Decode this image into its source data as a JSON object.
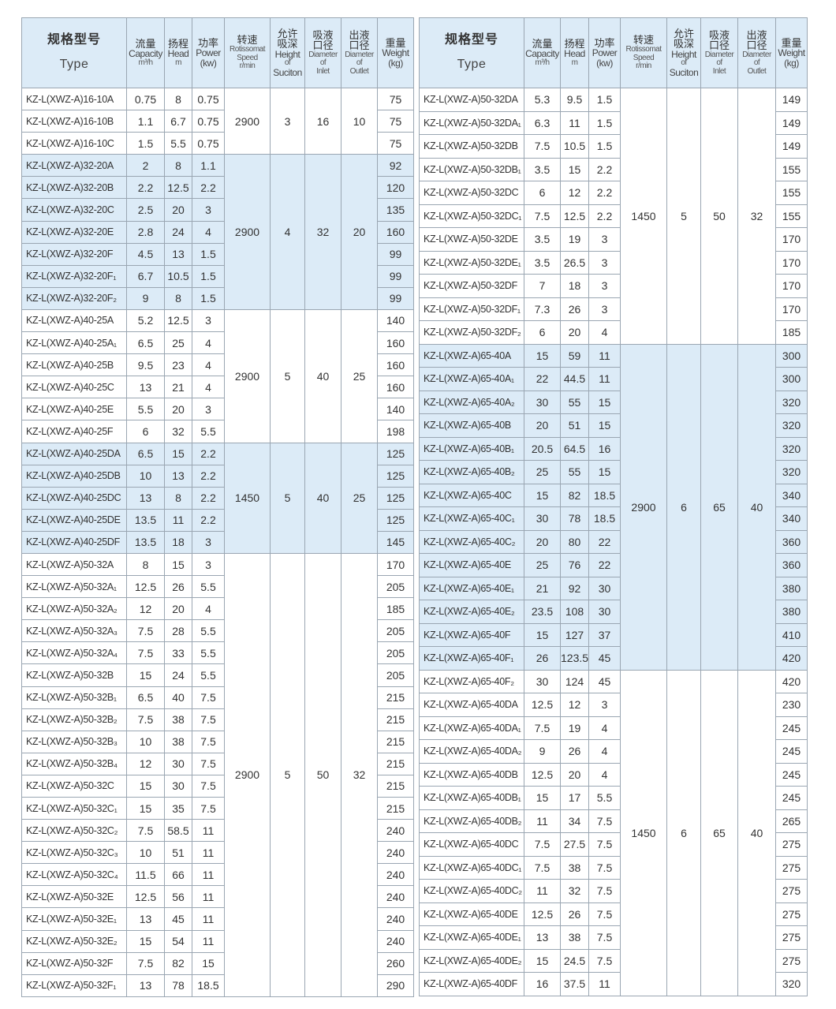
{
  "header": {
    "type_cn": "规格型号",
    "type_en": "Type",
    "capacity_cn": "流量",
    "capacity_en": "Capacity",
    "capacity_unit": "m³/h",
    "head_cn": "扬程",
    "head_en": "Head",
    "head_unit": "m",
    "power_cn": "功率",
    "power_en": "Power",
    "power_unit": "(kw)",
    "speed_cn": "转速",
    "speed_en1": "Rotissomat",
    "speed_en2": "Speed",
    "speed_unit": "r/min",
    "height_cn1": "允许",
    "height_cn2": "吸深",
    "height_en1": "Height",
    "height_en2": "of",
    "height_en3": "Suciton",
    "inlet_cn1": "吸液",
    "inlet_cn2": "口径",
    "inlet_en1": "Diameter",
    "inlet_en2": "of",
    "inlet_en3": "Inlet",
    "outlet_cn1": "出液",
    "outlet_cn2": "口径",
    "outlet_en1": "Diameter",
    "outlet_en2": "of",
    "outlet_en3": "Outlet",
    "weight_cn": "重量",
    "weight_en": "Weight",
    "weight_unit": "(kg)"
  },
  "colors": {
    "shade": "#dcebf7",
    "border": "#9aa6b2"
  },
  "tables": [
    {
      "groups": [
        {
          "speed": "2900",
          "height": "3",
          "inlet": "16",
          "outlet": "10",
          "shaded": false,
          "rows": [
            [
              "KZ-L(XWZ-A)16-10A",
              "0.75",
              "8",
              "0.75",
              "75"
            ],
            [
              "KZ-L(XWZ-A)16-10B",
              "1.1",
              "6.7",
              "0.75",
              "75"
            ],
            [
              "KZ-L(XWZ-A)16-10C",
              "1.5",
              "5.5",
              "0.75",
              "75"
            ]
          ]
        },
        {
          "speed": "2900",
          "height": "4",
          "inlet": "32",
          "outlet": "20",
          "shaded": true,
          "rows": [
            [
              "KZ-L(XWZ-A)32-20A",
              "2",
              "8",
              "1.1",
              "92"
            ],
            [
              "KZ-L(XWZ-A)32-20B",
              "2.2",
              "12.5",
              "2.2",
              "120"
            ],
            [
              "KZ-L(XWZ-A)32-20C",
              "2.5",
              "20",
              "3",
              "135"
            ],
            [
              "KZ-L(XWZ-A)32-20E",
              "2.8",
              "24",
              "4",
              "160"
            ],
            [
              "KZ-L(XWZ-A)32-20F",
              "4.5",
              "13",
              "1.5",
              "99"
            ],
            [
              "KZ-L(XWZ-A)32-20F₁",
              "6.7",
              "10.5",
              "1.5",
              "99"
            ],
            [
              "KZ-L(XWZ-A)32-20F₂",
              "9",
              "8",
              "1.5",
              "99"
            ]
          ]
        },
        {
          "speed": "2900",
          "height": "5",
          "inlet": "40",
          "outlet": "25",
          "shaded": false,
          "rows": [
            [
              "KZ-L(XWZ-A)40-25A",
              "5.2",
              "12.5",
              "3",
              "140"
            ],
            [
              "KZ-L(XWZ-A)40-25A₁",
              "6.5",
              "25",
              "4",
              "160"
            ],
            [
              "KZ-L(XWZ-A)40-25B",
              "9.5",
              "23",
              "4",
              "160"
            ],
            [
              "KZ-L(XWZ-A)40-25C",
              "13",
              "21",
              "4",
              "160"
            ],
            [
              "KZ-L(XWZ-A)40-25E",
              "5.5",
              "20",
              "3",
              "140"
            ],
            [
              "KZ-L(XWZ-A)40-25F",
              "6",
              "32",
              "5.5",
              "198"
            ]
          ]
        },
        {
          "speed": "1450",
          "height": "5",
          "inlet": "40",
          "outlet": "25",
          "shaded": true,
          "rows": [
            [
              "KZ-L(XWZ-A)40-25DA",
              "6.5",
              "15",
              "2.2",
              "125"
            ],
            [
              "KZ-L(XWZ-A)40-25DB",
              "10",
              "13",
              "2.2",
              "125"
            ],
            [
              "KZ-L(XWZ-A)40-25DC",
              "13",
              "8",
              "2.2",
              "125"
            ],
            [
              "KZ-L(XWZ-A)40-25DE",
              "13.5",
              "11",
              "2.2",
              "125"
            ],
            [
              "KZ-L(XWZ-A)40-25DF",
              "13.5",
              "18",
              "3",
              "145"
            ]
          ]
        },
        {
          "speed": "2900",
          "height": "5",
          "inlet": "50",
          "outlet": "32",
          "shaded": false,
          "rows": [
            [
              "KZ-L(XWZ-A)50-32A",
              "8",
              "15",
              "3",
              "170"
            ],
            [
              "KZ-L(XWZ-A)50-32A₁",
              "12.5",
              "26",
              "5.5",
              "205"
            ],
            [
              "KZ-L(XWZ-A)50-32A₂",
              "12",
              "20",
              "4",
              "185"
            ],
            [
              "KZ-L(XWZ-A)50-32A₃",
              "7.5",
              "28",
              "5.5",
              "205"
            ],
            [
              "KZ-L(XWZ-A)50-32A₄",
              "7.5",
              "33",
              "5.5",
              "205"
            ],
            [
              "KZ-L(XWZ-A)50-32B",
              "15",
              "24",
              "5.5",
              "205"
            ],
            [
              "KZ-L(XWZ-A)50-32B₁",
              "6.5",
              "40",
              "7.5",
              "215"
            ],
            [
              "KZ-L(XWZ-A)50-32B₂",
              "7.5",
              "38",
              "7.5",
              "215"
            ],
            [
              "KZ-L(XWZ-A)50-32B₃",
              "10",
              "38",
              "7.5",
              "215"
            ],
            [
              "KZ-L(XWZ-A)50-32B₄",
              "12",
              "30",
              "7.5",
              "215"
            ],
            [
              "KZ-L(XWZ-A)50-32C",
              "15",
              "30",
              "7.5",
              "215"
            ],
            [
              "KZ-L(XWZ-A)50-32C₁",
              "15",
              "35",
              "7.5",
              "215"
            ],
            [
              "KZ-L(XWZ-A)50-32C₂",
              "7.5",
              "58.5",
              "11",
              "240"
            ],
            [
              "KZ-L(XWZ-A)50-32C₃",
              "10",
              "51",
              "11",
              "240"
            ],
            [
              "KZ-L(XWZ-A)50-32C₄",
              "11.5",
              "66",
              "11",
              "240"
            ],
            [
              "KZ-L(XWZ-A)50-32E",
              "12.5",
              "56",
              "11",
              "240"
            ],
            [
              "KZ-L(XWZ-A)50-32E₁",
              "13",
              "45",
              "11",
              "240"
            ],
            [
              "KZ-L(XWZ-A)50-32E₂",
              "15",
              "54",
              "11",
              "240"
            ],
            [
              "KZ-L(XWZ-A)50-32F",
              "7.5",
              "82",
              "15",
              "260"
            ],
            [
              "KZ-L(XWZ-A)50-32F₁",
              "13",
              "78",
              "18.5",
              "290"
            ]
          ]
        }
      ]
    },
    {
      "groups": [
        {
          "speed": "1450",
          "height": "5",
          "inlet": "50",
          "outlet": "32",
          "shaded": false,
          "rows": [
            [
              "KZ-L(XWZ-A)50-32DA",
              "5.3",
              "9.5",
              "1.5",
              "149"
            ],
            [
              "KZ-L(XWZ-A)50-32DA₁",
              "6.3",
              "11",
              "1.5",
              "149"
            ],
            [
              "KZ-L(XWZ-A)50-32DB",
              "7.5",
              "10.5",
              "1.5",
              "149"
            ],
            [
              "KZ-L(XWZ-A)50-32DB₁",
              "3.5",
              "15",
              "2.2",
              "155"
            ],
            [
              "KZ-L(XWZ-A)50-32DC",
              "6",
              "12",
              "2.2",
              "155"
            ],
            [
              "KZ-L(XWZ-A)50-32DC₁",
              "7.5",
              "12.5",
              "2.2",
              "155"
            ],
            [
              "KZ-L(XWZ-A)50-32DE",
              "3.5",
              "19",
              "3",
              "170"
            ],
            [
              "KZ-L(XWZ-A)50-32DE₁",
              "3.5",
              "26.5",
              "3",
              "170"
            ],
            [
              "KZ-L(XWZ-A)50-32DF",
              "7",
              "18",
              "3",
              "170"
            ],
            [
              "KZ-L(XWZ-A)50-32DF₁",
              "7.3",
              "26",
              "3",
              "170"
            ],
            [
              "KZ-L(XWZ-A)50-32DF₂",
              "6",
              "20",
              "4",
              "185"
            ]
          ]
        },
        {
          "speed": "2900",
          "height": "6",
          "inlet": "65",
          "outlet": "40",
          "shaded": true,
          "rows": [
            [
              "KZ-L(XWZ-A)65-40A",
              "15",
              "59",
              "11",
              "300"
            ],
            [
              "KZ-L(XWZ-A)65-40A₁",
              "22",
              "44.5",
              "11",
              "300"
            ],
            [
              "KZ-L(XWZ-A)65-40A₂",
              "30",
              "55",
              "15",
              "320"
            ],
            [
              "KZ-L(XWZ-A)65-40B",
              "20",
              "51",
              "15",
              "320"
            ],
            [
              "KZ-L(XWZ-A)65-40B₁",
              "20.5",
              "64.5",
              "16",
              "320"
            ],
            [
              "KZ-L(XWZ-A)65-40B₂",
              "25",
              "55",
              "15",
              "320"
            ],
            [
              "KZ-L(XWZ-A)65-40C",
              "15",
              "82",
              "18.5",
              "340"
            ],
            [
              "KZ-L(XWZ-A)65-40C₁",
              "30",
              "78",
              "18.5",
              "340"
            ],
            [
              "KZ-L(XWZ-A)65-40C₂",
              "20",
              "80",
              "22",
              "360"
            ],
            [
              "KZ-L(XWZ-A)65-40E",
              "25",
              "76",
              "22",
              "360"
            ],
            [
              "KZ-L(XWZ-A)65-40E₁",
              "21",
              "92",
              "30",
              "380"
            ],
            [
              "KZ-L(XWZ-A)65-40E₂",
              "23.5",
              "108",
              "30",
              "380"
            ],
            [
              "KZ-L(XWZ-A)65-40F",
              "15",
              "127",
              "37",
              "410"
            ],
            [
              "KZ-L(XWZ-A)65-40F₁",
              "26",
              "123.5",
              "45",
              "420"
            ]
          ]
        },
        {
          "speed": "1450",
          "height": "6",
          "inlet": "65",
          "outlet": "40",
          "shaded": false,
          "rows": [
            [
              "KZ-L(XWZ-A)65-40F₂",
              "30",
              "124",
              "45",
              "420"
            ],
            [
              "KZ-L(XWZ-A)65-40DA",
              "12.5",
              "12",
              "3",
              "230"
            ],
            [
              "KZ-L(XWZ-A)65-40DA₁",
              "7.5",
              "19",
              "4",
              "245"
            ],
            [
              "KZ-L(XWZ-A)65-40DA₂",
              "9",
              "26",
              "4",
              "245"
            ],
            [
              "KZ-L(XWZ-A)65-40DB",
              "12.5",
              "20",
              "4",
              "245"
            ],
            [
              "KZ-L(XWZ-A)65-40DB₁",
              "15",
              "17",
              "5.5",
              "245"
            ],
            [
              "KZ-L(XWZ-A)65-40DB₂",
              "11",
              "34",
              "7.5",
              "265"
            ],
            [
              "KZ-L(XWZ-A)65-40DC",
              "7.5",
              "27.5",
              "7.5",
              "275"
            ],
            [
              "KZ-L(XWZ-A)65-40DC₁",
              "7.5",
              "38",
              "7.5",
              "275"
            ],
            [
              "KZ-L(XWZ-A)65-40DC₂",
              "11",
              "32",
              "7.5",
              "275"
            ],
            [
              "KZ-L(XWZ-A)65-40DE",
              "12.5",
              "26",
              "7.5",
              "275"
            ],
            [
              "KZ-L(XWZ-A)65-40DE₁",
              "13",
              "38",
              "7.5",
              "275"
            ],
            [
              "KZ-L(XWZ-A)65-40DE₂",
              "15",
              "24.5",
              "7.5",
              "275"
            ],
            [
              "KZ-L(XWZ-A)65-40DF",
              "16",
              "37.5",
              "11",
              "320"
            ]
          ]
        }
      ]
    }
  ]
}
